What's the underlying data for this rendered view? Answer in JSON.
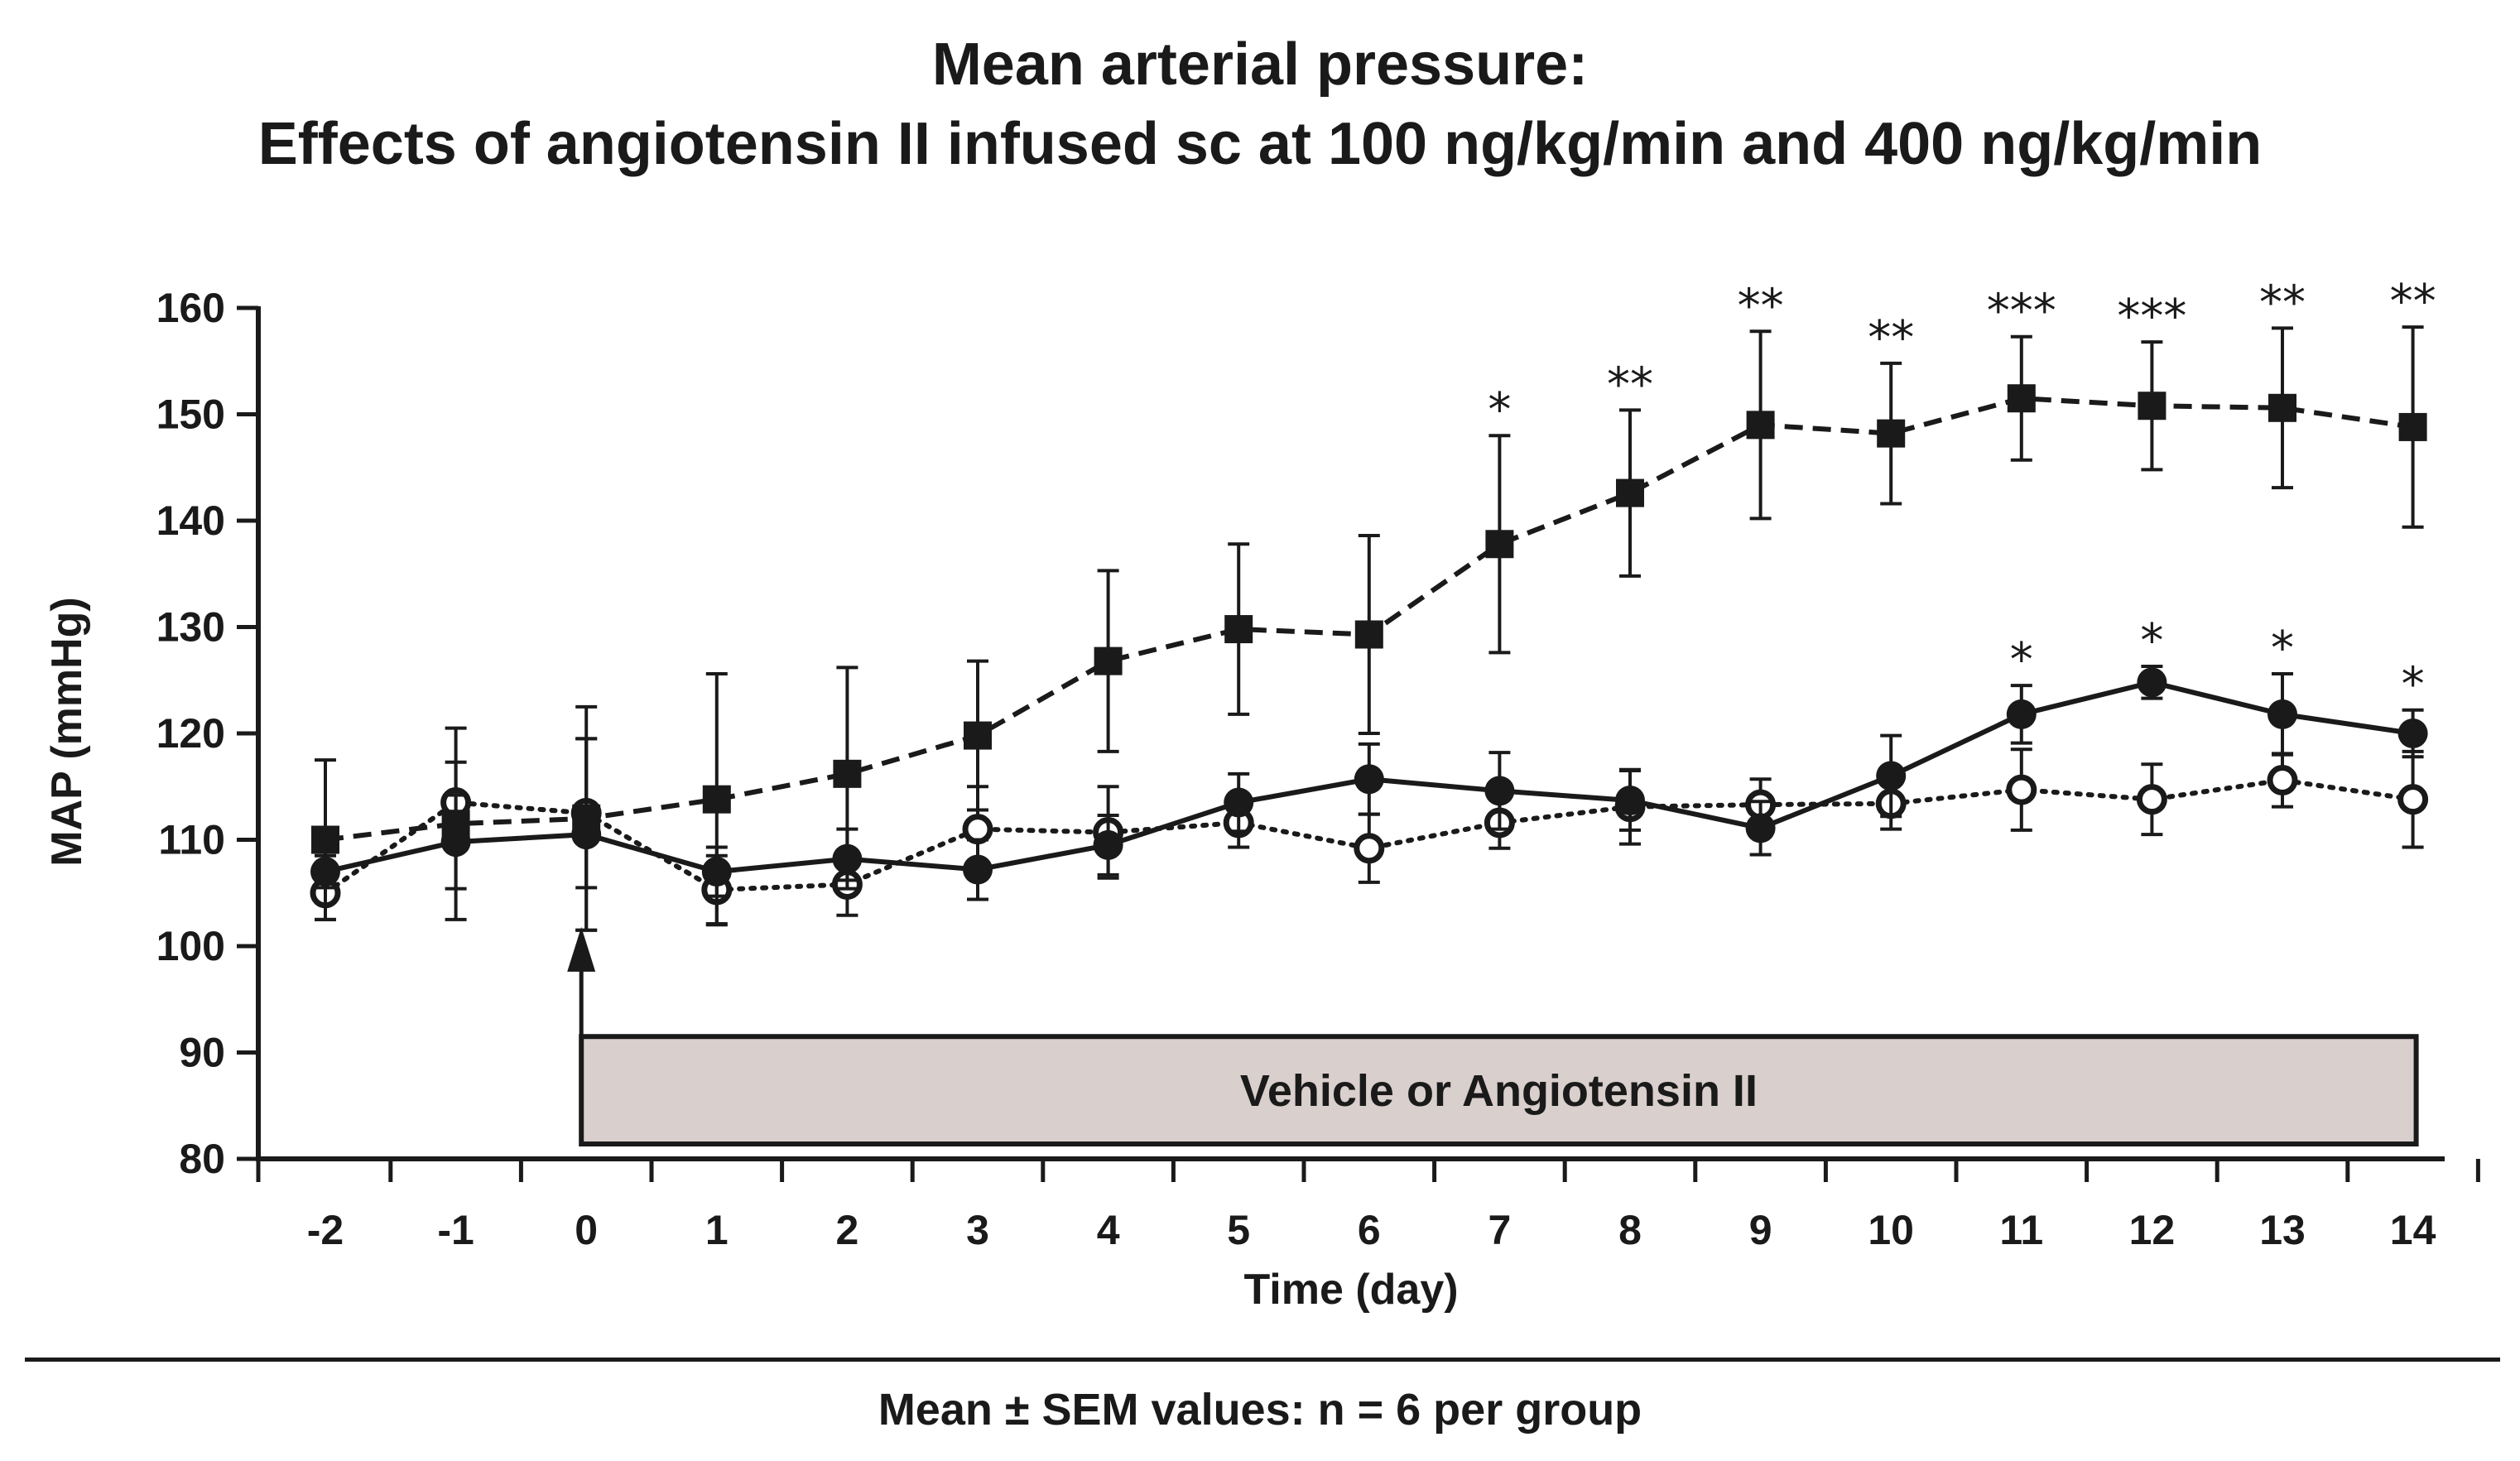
{
  "chart_data": {
    "type": "line",
    "title_lines": [
      "Mean arterial pressure:",
      "Effects of angiotensin II infused sc at 100 ng/kg/min and 400 ng/kg/min"
    ],
    "xlabel": "Time (day)",
    "ylabel": "MAP (mmHg)",
    "categories": [
      "-2",
      "-1",
      "0",
      "1",
      "2",
      "3",
      "4",
      "5",
      "6",
      "7",
      "8",
      "9",
      "10",
      "11",
      "12",
      "13",
      "14"
    ],
    "x": [
      -2,
      -1,
      0,
      1,
      2,
      3,
      4,
      5,
      6,
      7,
      8,
      9,
      10,
      11,
      12,
      13,
      14
    ],
    "ylim": [
      80,
      160
    ],
    "yticks": [
      80,
      90,
      100,
      110,
      120,
      130,
      140,
      150,
      160
    ],
    "grid": false,
    "series": [
      {
        "name": "Angiotensin II 400 ng/kg/min",
        "marker": "square-filled",
        "line": "dashed",
        "values": [
          110,
          111.5,
          112,
          113.8,
          116.2,
          119.8,
          126.8,
          129.8,
          129.3,
          137.8,
          142.6,
          149,
          148.2,
          151.5,
          150.8,
          150.6,
          148.8
        ],
        "errors": [
          7.5,
          9,
          10.5,
          11.8,
          10,
          7,
          8.5,
          8,
          9.3,
          10.2,
          7.8,
          8.8,
          6.6,
          5.8,
          6,
          7.5,
          9.4
        ],
        "significance": [
          "",
          "",
          "",
          "",
          "",
          "",
          "",
          "",
          "",
          "*",
          "**",
          "**",
          "**",
          "***",
          "***",
          "**",
          "**"
        ]
      },
      {
        "name": "Angiotensin II 100 ng/kg/min",
        "marker": "circle-filled",
        "line": "solid",
        "values": [
          107,
          109.8,
          110.5,
          107,
          108.2,
          107.2,
          109.5,
          113.5,
          115.7,
          114.6,
          113.7,
          111.1,
          116,
          121.8,
          124.8,
          121.8,
          120
        ],
        "errors": [
          1.5,
          4.4,
          9,
          2.3,
          2.8,
          2.8,
          2.8,
          2.7,
          3.3,
          3.6,
          2.8,
          2.5,
          3.8,
          2.7,
          1.5,
          3.8,
          2.2
        ],
        "significance": [
          "",
          "",
          "",
          "",
          "",
          "",
          "",
          "",
          "",
          "",
          "",
          "",
          "",
          "*",
          "*",
          "*",
          "*"
        ]
      },
      {
        "name": "Vehicle",
        "marker": "circle-open",
        "line": "dotted",
        "values": [
          105,
          113.5,
          112.5,
          105.3,
          105.8,
          111,
          110.7,
          111.6,
          109.2,
          111.6,
          113.1,
          113.3,
          113.4,
          114.7,
          113.8,
          115.6,
          113.8
        ],
        "errors": [
          2.5,
          3.8,
          7,
          3.2,
          2.9,
          4,
          4.3,
          2.3,
          3.2,
          2.4,
          3.5,
          2.4,
          2.4,
          3.8,
          3.3,
          2.5,
          4.5
        ],
        "significance": [
          "",
          "",
          "",
          "",
          "",
          "",
          "",
          "",
          "",
          "",
          "",
          "",
          "",
          "",
          "",
          "",
          ""
        ]
      }
    ],
    "annotations": {
      "treatment_box_label": "Vehicle or Angiotensin II",
      "treatment_start_day": 0,
      "treatment_end_day": 14
    },
    "footnote": "Mean ± SEM values: n = 6 per group"
  }
}
